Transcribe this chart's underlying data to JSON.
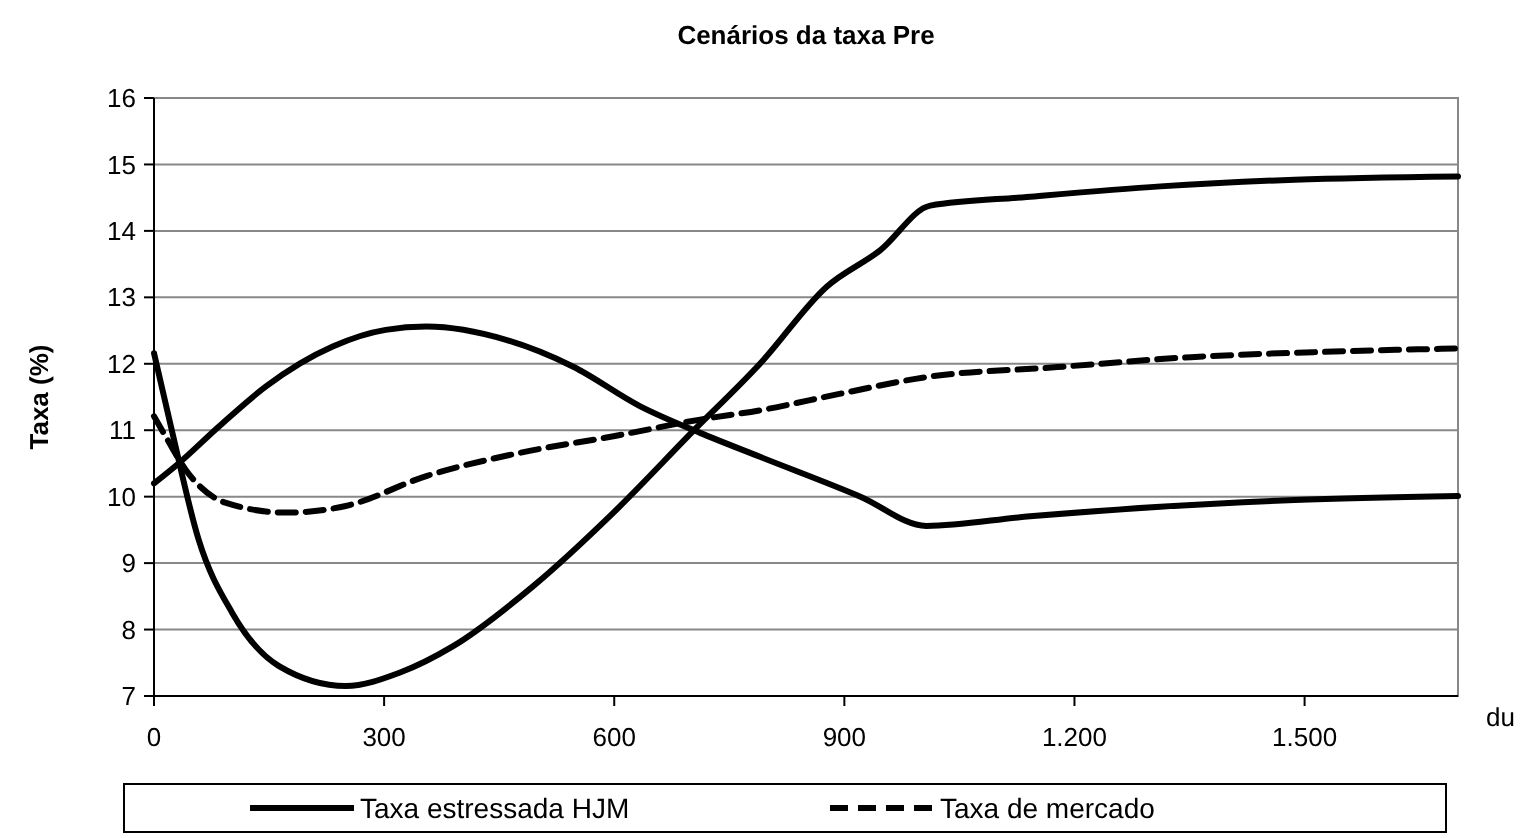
{
  "chart_data": {
    "type": "line",
    "title": "Cenários da taxa Pre",
    "xlabel": "du",
    "ylabel": "Taxa (%)",
    "xlim": [
      0,
      1700
    ],
    "xticks": [
      0,
      300,
      600,
      900,
      {
        "value": 1200,
        "label": "1.200"
      },
      {
        "value": 1500,
        "label": "1.500"
      }
    ],
    "ylim": [
      7,
      16
    ],
    "yticks": [
      7,
      8,
      9,
      10,
      11,
      12,
      13,
      14,
      15,
      16
    ],
    "grid": "y",
    "legend": "bottom",
    "series": [
      {
        "name": "Taxa estressada HJM",
        "color": "#000000",
        "line_style": "solid",
        "x": [
          0,
          24,
          58,
          102,
          163,
          250,
          320,
          390,
          494,
          599,
          704,
          790,
          877,
          947,
          1012,
          1138,
          1312,
          1487,
          1700
        ],
        "values": [
          12.16,
          10.96,
          9.36,
          8.25,
          7.45,
          7.15,
          7.35,
          7.75,
          8.65,
          9.76,
          11.0,
          12.0,
          13.16,
          13.71,
          14.38,
          14.51,
          14.67,
          14.77,
          14.82
        ]
      },
      {
        "color": "#000000",
        "line_style": "solid",
        "x": [
          0,
          32,
          85,
          146,
          233,
          302,
          355,
          459,
          546,
          634,
          712,
          790,
          921,
          1007,
          1138,
          1312,
          1487,
          1700
        ],
        "values": [
          10.2,
          10.5,
          11.06,
          11.66,
          12.26,
          12.51,
          12.56,
          12.36,
          11.96,
          11.36,
          10.96,
          10.6,
          10.0,
          9.56,
          9.7,
          9.85,
          9.95,
          10.01
        ]
      },
      {
        "name": "Taxa de mercado",
        "color": "#000000",
        "line_style": "dashed",
        "x": [
          0,
          15,
          41,
          93,
          172,
          250,
          355,
          477,
          599,
          712,
          790,
          895,
          1007,
          1178,
          1352,
          1526,
          1700
        ],
        "values": [
          11.21,
          10.91,
          10.41,
          9.91,
          9.76,
          9.86,
          10.31,
          10.66,
          10.91,
          11.16,
          11.3,
          11.55,
          11.8,
          11.95,
          12.1,
          12.18,
          12.23
        ]
      }
    ]
  }
}
